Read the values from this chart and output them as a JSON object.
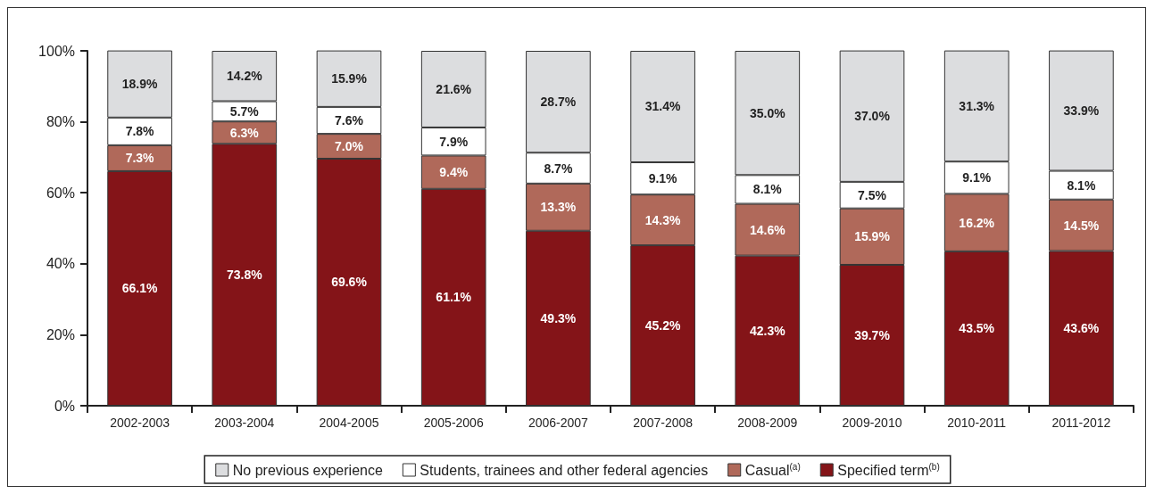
{
  "chart_data": {
    "type": "bar",
    "stacked": true,
    "legend": "bottom",
    "grid": false,
    "categories": [
      "2002-2003",
      "2003-2004",
      "2004-2005",
      "2005-2006",
      "2006-2007",
      "2007-2008",
      "2008-2009",
      "2009-2010",
      "2010-2011",
      "2011-2012"
    ],
    "ylim": [
      0,
      100
    ],
    "yticks": [
      {
        "value": 0,
        "label": "0%"
      },
      {
        "value": 20,
        "label": "20%"
      },
      {
        "value": 40,
        "label": "40%"
      },
      {
        "value": 60,
        "label": "60%"
      },
      {
        "value": 80,
        "label": "80%"
      },
      {
        "value": 100,
        "label": "100%"
      }
    ],
    "series": [
      {
        "name": "Specified term$^{(b)}$",
        "color": "#841418",
        "values": [
          66.1,
          73.8,
          69.6,
          61.1,
          49.3,
          45.2,
          42.3,
          39.7,
          43.5,
          43.6
        ],
        "value_labels": [
          "66.1%",
          "73.8%",
          "69.6%",
          "61.1%",
          "49.3%",
          "45.2%",
          "42.3%",
          "39.7%",
          "43.5%",
          "43.6%"
        ]
      },
      {
        "name": "Casual$^{(a)}$",
        "color": "#b0695a",
        "values": [
          7.3,
          6.3,
          7.0,
          9.4,
          13.3,
          14.3,
          14.6,
          15.9,
          16.2,
          14.5
        ],
        "value_labels": [
          "7.3%",
          "6.3%",
          "7.0%",
          "9.4%",
          "13.3%",
          "14.3%",
          "14.6%",
          "15.9%",
          "16.2%",
          "14.5%"
        ]
      },
      {
        "name": "Students, trainees and other federal agencies",
        "color": "#ffffff",
        "values": [
          7.8,
          5.7,
          7.6,
          7.9,
          8.7,
          9.1,
          8.1,
          7.5,
          9.1,
          8.1
        ],
        "value_labels": [
          "7.8%",
          "5.7%",
          "7.6%",
          "7.9%",
          "8.7%",
          "9.1%",
          "8.1%",
          "7.5%",
          "9.1%",
          "8.1%"
        ]
      },
      {
        "name": "No previous experience",
        "color": "#dcdddf",
        "values": [
          18.9,
          14.2,
          15.9,
          21.6,
          28.7,
          31.4,
          35.0,
          37.0,
          31.3,
          33.9
        ],
        "value_labels": [
          "18.9%",
          "14.2%",
          "15.9%",
          "21.6%",
          "28.7%",
          "31.4%",
          "35.0%",
          "37.0%",
          "31.3%",
          "33.9%"
        ]
      }
    ]
  }
}
